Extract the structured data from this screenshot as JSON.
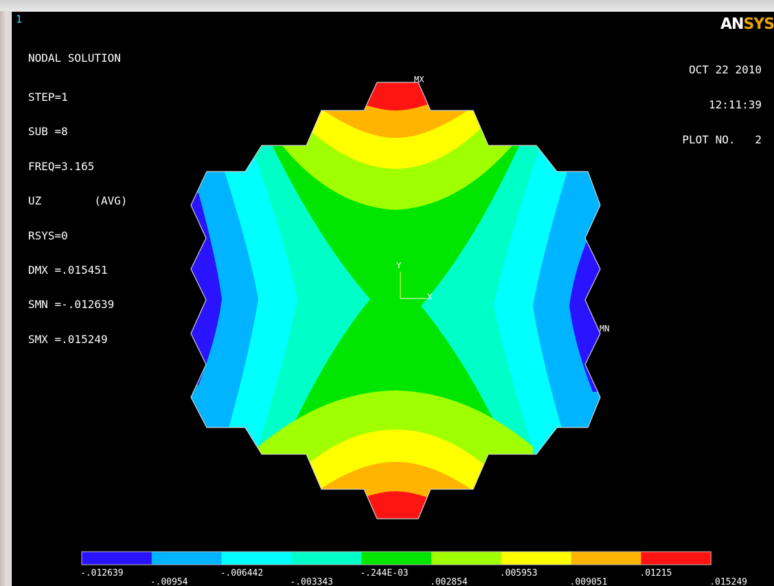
{
  "window": {
    "number": "1"
  },
  "logo": {
    "part_a": "AN",
    "part_b": "SYS"
  },
  "solution": {
    "title": "NODAL SOLUTION",
    "lines": [
      "STEP=1",
      "SUB =8",
      "FREQ=3.165",
      "UZ        (AVG)",
      "RSYS=0",
      "DMX =.015451",
      "SMN =-.012639",
      "SMX =.015249"
    ]
  },
  "stamp": {
    "date": "OCT 22 2010",
    "time": "12:11:39",
    "plot": "PLOT NO.   2"
  },
  "markers": {
    "max": "MX",
    "min": "MN"
  },
  "triad": {
    "x_label": "X",
    "y_label": "Y"
  },
  "legend": {
    "colors": [
      "#2a14ff",
      "#00b4ff",
      "#00ffff",
      "#00ffc8",
      "#00e600",
      "#a0ff00",
      "#ffff00",
      "#ffb400",
      "#ff1414"
    ],
    "values": [
      ".012639",
      ".00954",
      ".006442",
      ".003343",
      ".244E-03",
      ".002854",
      ".005953",
      ".009051",
      ".01215",
      ".015249"
    ],
    "value_prefix": [
      "-",
      "-",
      "-",
      "-",
      "-",
      "",
      "",
      "",
      "",
      ""
    ]
  },
  "contour_colors": {
    "band_1": "#2a14ff",
    "band_2": "#00b4ff",
    "band_3": "#00ffff",
    "band_4": "#00ffc8",
    "band_5": "#00e600",
    "band_6": "#a0ff00",
    "band_7": "#ffff00",
    "band_8": "#ffb400",
    "band_9": "#ff1414"
  }
}
